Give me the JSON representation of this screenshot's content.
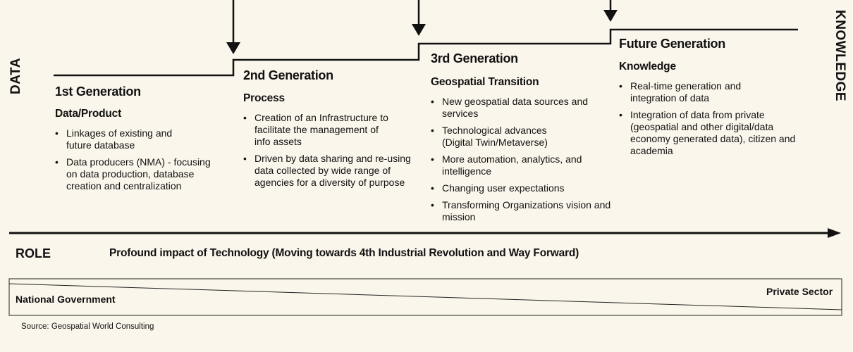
{
  "axis": {
    "left_label": "DATA",
    "right_label": "KNOWLEDGE"
  },
  "generations": [
    {
      "title": "1st Generation",
      "subtitle": "Data/Product",
      "points": [
        "Linkages of existing and future database",
        "Data producers (NMA) - focusing on data production, database creation and centralization"
      ]
    },
    {
      "title": "2nd Generation",
      "subtitle": "Process",
      "points": [
        "Creation of an Infrastructure to facilitate the management of info assets",
        "Driven by data sharing and re-using data collected by wide range of agencies for a diversity of purpose"
      ]
    },
    {
      "title": "3rd Generation",
      "subtitle": "Geospatial Transition",
      "points": [
        "New geospatial data sources and services",
        "Technological advances (Digital Twin/Metaverse)",
        "More automation, analytics, and intelligence",
        "Changing user expectations",
        "Transforming Organizations vision and mission"
      ]
    },
    {
      "title": "Future Generation",
      "subtitle": "Knowledge",
      "points": [
        "Real-time generation and integration of data",
        "Integration of data from private (geospatial and other digital/data economy generated data), citizen and academia"
      ]
    }
  ],
  "role": {
    "label": "ROLE",
    "impact": "Profound impact of Technology (Moving towards 4th Industrial Revolution and Way Forward)",
    "left_party": "National Government",
    "right_party": "Private Sector"
  },
  "source": "Source: Geospatial World Consulting"
}
